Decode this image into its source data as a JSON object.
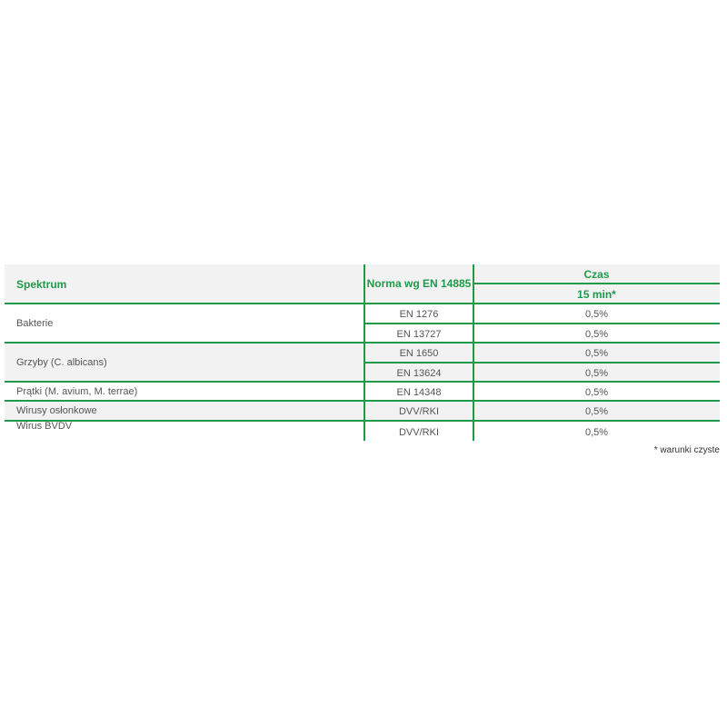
{
  "header": {
    "spektrum": "Spektrum",
    "norma": "Norma wg EN 14885",
    "czas": "Czas",
    "time": "15 min*"
  },
  "groups": [
    {
      "name": "Bakterie",
      "rows": [
        {
          "norm": "EN 1276",
          "value": "0,5%"
        },
        {
          "norm": "EN 13727",
          "value": "0,5%"
        }
      ]
    },
    {
      "name": "Grzyby (C. albicans)",
      "rows": [
        {
          "norm": "EN 1650",
          "value": "0,5%"
        },
        {
          "norm": "EN 13624",
          "value": "0,5%"
        }
      ]
    },
    {
      "name": "Prątki (M. avium, M. terrae)",
      "rows": [
        {
          "norm": "EN 14348",
          "value": "0,5%"
        }
      ]
    },
    {
      "name": "Wirusy osłonkowe",
      "rows": [
        {
          "norm": "DVV/RKI",
          "value": "0,5%"
        }
      ]
    },
    {
      "name": "Wirus BVDV",
      "rows": [
        {
          "norm": "DVV/RKI",
          "value": "0,5%"
        }
      ]
    }
  ],
  "footnote": "* warunki czyste",
  "colors": {
    "accent": "#1e9a4a",
    "stripe": "#f2f2f2"
  }
}
